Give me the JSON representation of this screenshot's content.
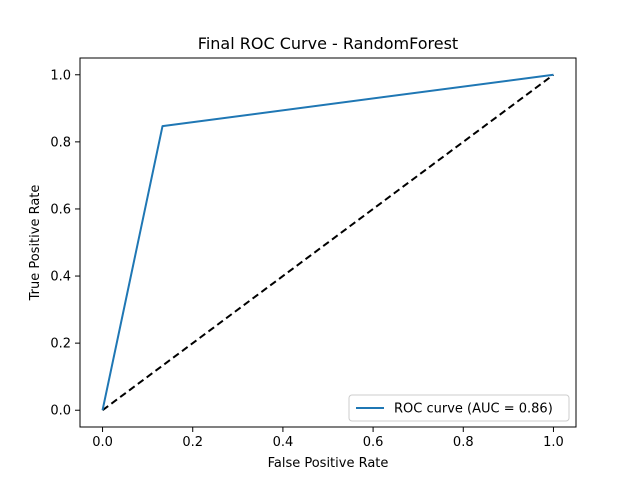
{
  "chart_data": {
    "type": "line",
    "title": "Final ROC Curve - RandomForest",
    "xlabel": "False Positive Rate",
    "ylabel": "True Positive Rate",
    "xlim": [
      -0.05,
      1.05
    ],
    "ylim": [
      -0.05,
      1.05
    ],
    "xticks": [
      "0.0",
      "0.2",
      "0.4",
      "0.6",
      "0.8",
      "1.0"
    ],
    "yticks": [
      "0.0",
      "0.2",
      "0.4",
      "0.6",
      "0.8",
      "1.0"
    ],
    "grid": false,
    "legend_position": "bottom-right",
    "series": [
      {
        "name": "ROC curve (AUC = 0.86)",
        "color": "#1f77b4",
        "style": "solid",
        "x": [
          0.0,
          0.133,
          1.0
        ],
        "y": [
          0.0,
          0.847,
          1.0
        ]
      },
      {
        "color": "#000000",
        "style": "dashed",
        "x": [
          0.0,
          1.0
        ],
        "y": [
          0.0,
          1.0
        ]
      }
    ]
  }
}
